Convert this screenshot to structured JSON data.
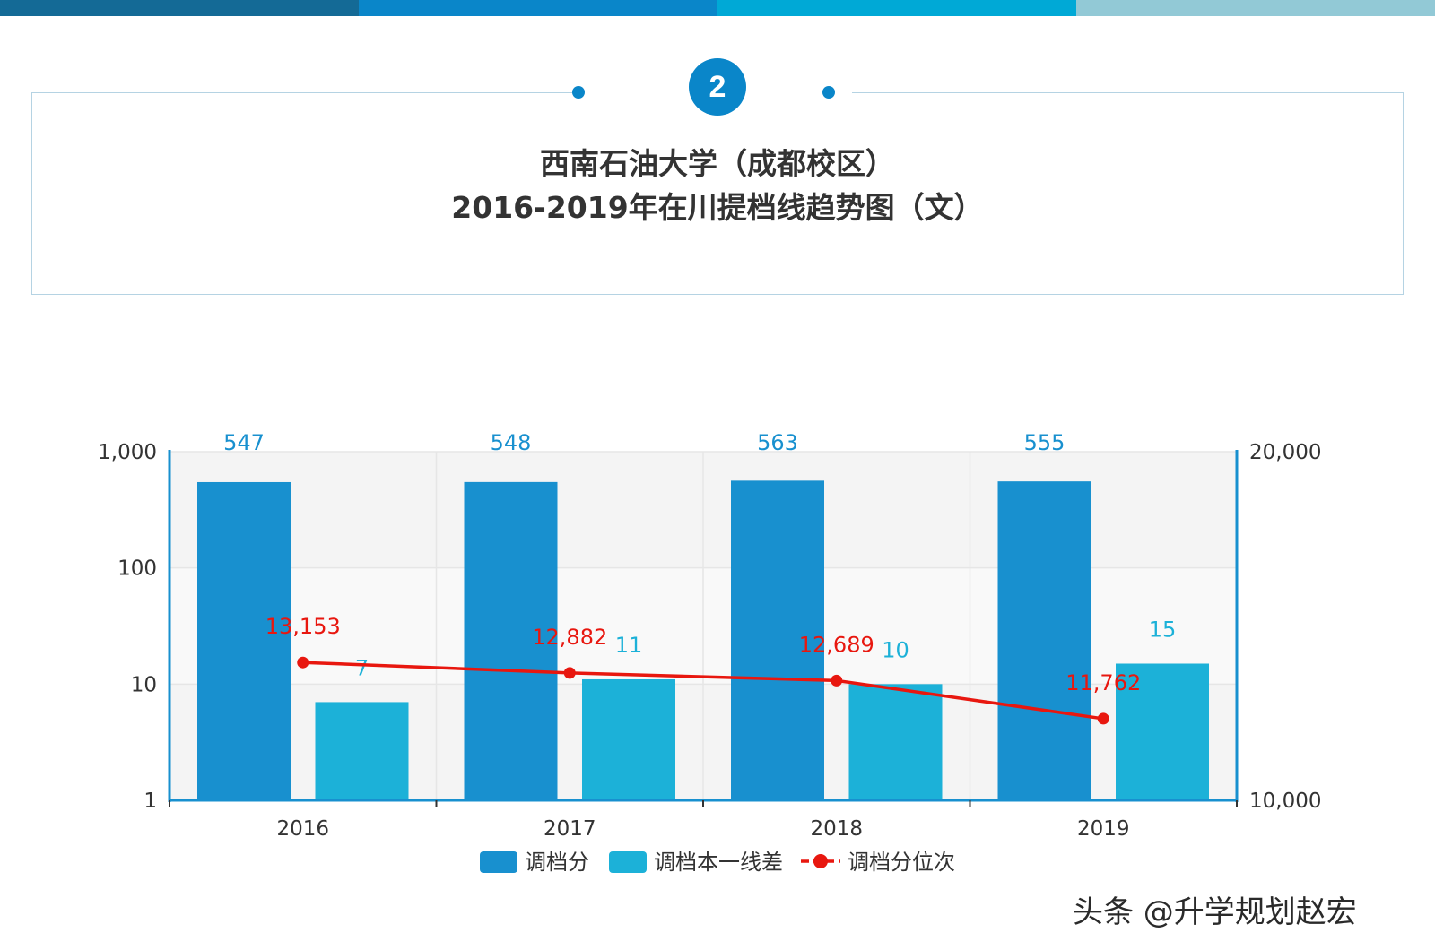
{
  "header": {
    "step_number": "2",
    "title_line1": "西南石油大学（成都校区）",
    "title_line2": "2016-2019年在川提档线趋势图（文）",
    "colors": {
      "bar_segments": [
        "#146a96",
        "#0a86c9",
        "#00a9d6",
        "#92c9d6"
      ],
      "accent": "#0a86c9"
    }
  },
  "chart_data": {
    "type": "bar",
    "categories": [
      "2016",
      "2017",
      "2018",
      "2019"
    ],
    "series": [
      {
        "name": "调档分",
        "type": "bar",
        "axis": "left",
        "color": "#1890cf",
        "values": [
          547,
          548,
          563,
          555
        ],
        "labels": [
          "547",
          "548",
          "563",
          "555"
        ]
      },
      {
        "name": "调档本一线差",
        "type": "bar",
        "axis": "left",
        "color": "#1cb1d8",
        "values": [
          7,
          11,
          10,
          15
        ],
        "labels": [
          "7",
          "11",
          "10",
          "15"
        ]
      },
      {
        "name": "调档分位次",
        "type": "line",
        "axis": "right",
        "color": "#e8170f",
        "values": [
          13153,
          12882,
          12689,
          11762
        ],
        "labels": [
          "13,153",
          "12,882",
          "12,689",
          "11,762"
        ]
      }
    ],
    "y_left": {
      "scale": "log",
      "range": [
        1,
        1000
      ],
      "ticks": [
        1,
        10,
        100,
        1000
      ],
      "tick_labels": [
        "1",
        "10",
        "100",
        "1,000"
      ]
    },
    "y_right": {
      "scale": "log",
      "range": [
        10000,
        20000
      ],
      "ticks": [
        10000,
        20000
      ],
      "tick_labels": [
        "10,000",
        "20,000"
      ]
    },
    "legend_position": "bottom-center",
    "grid": true
  },
  "watermark": "头条 @升学规划赵宏"
}
